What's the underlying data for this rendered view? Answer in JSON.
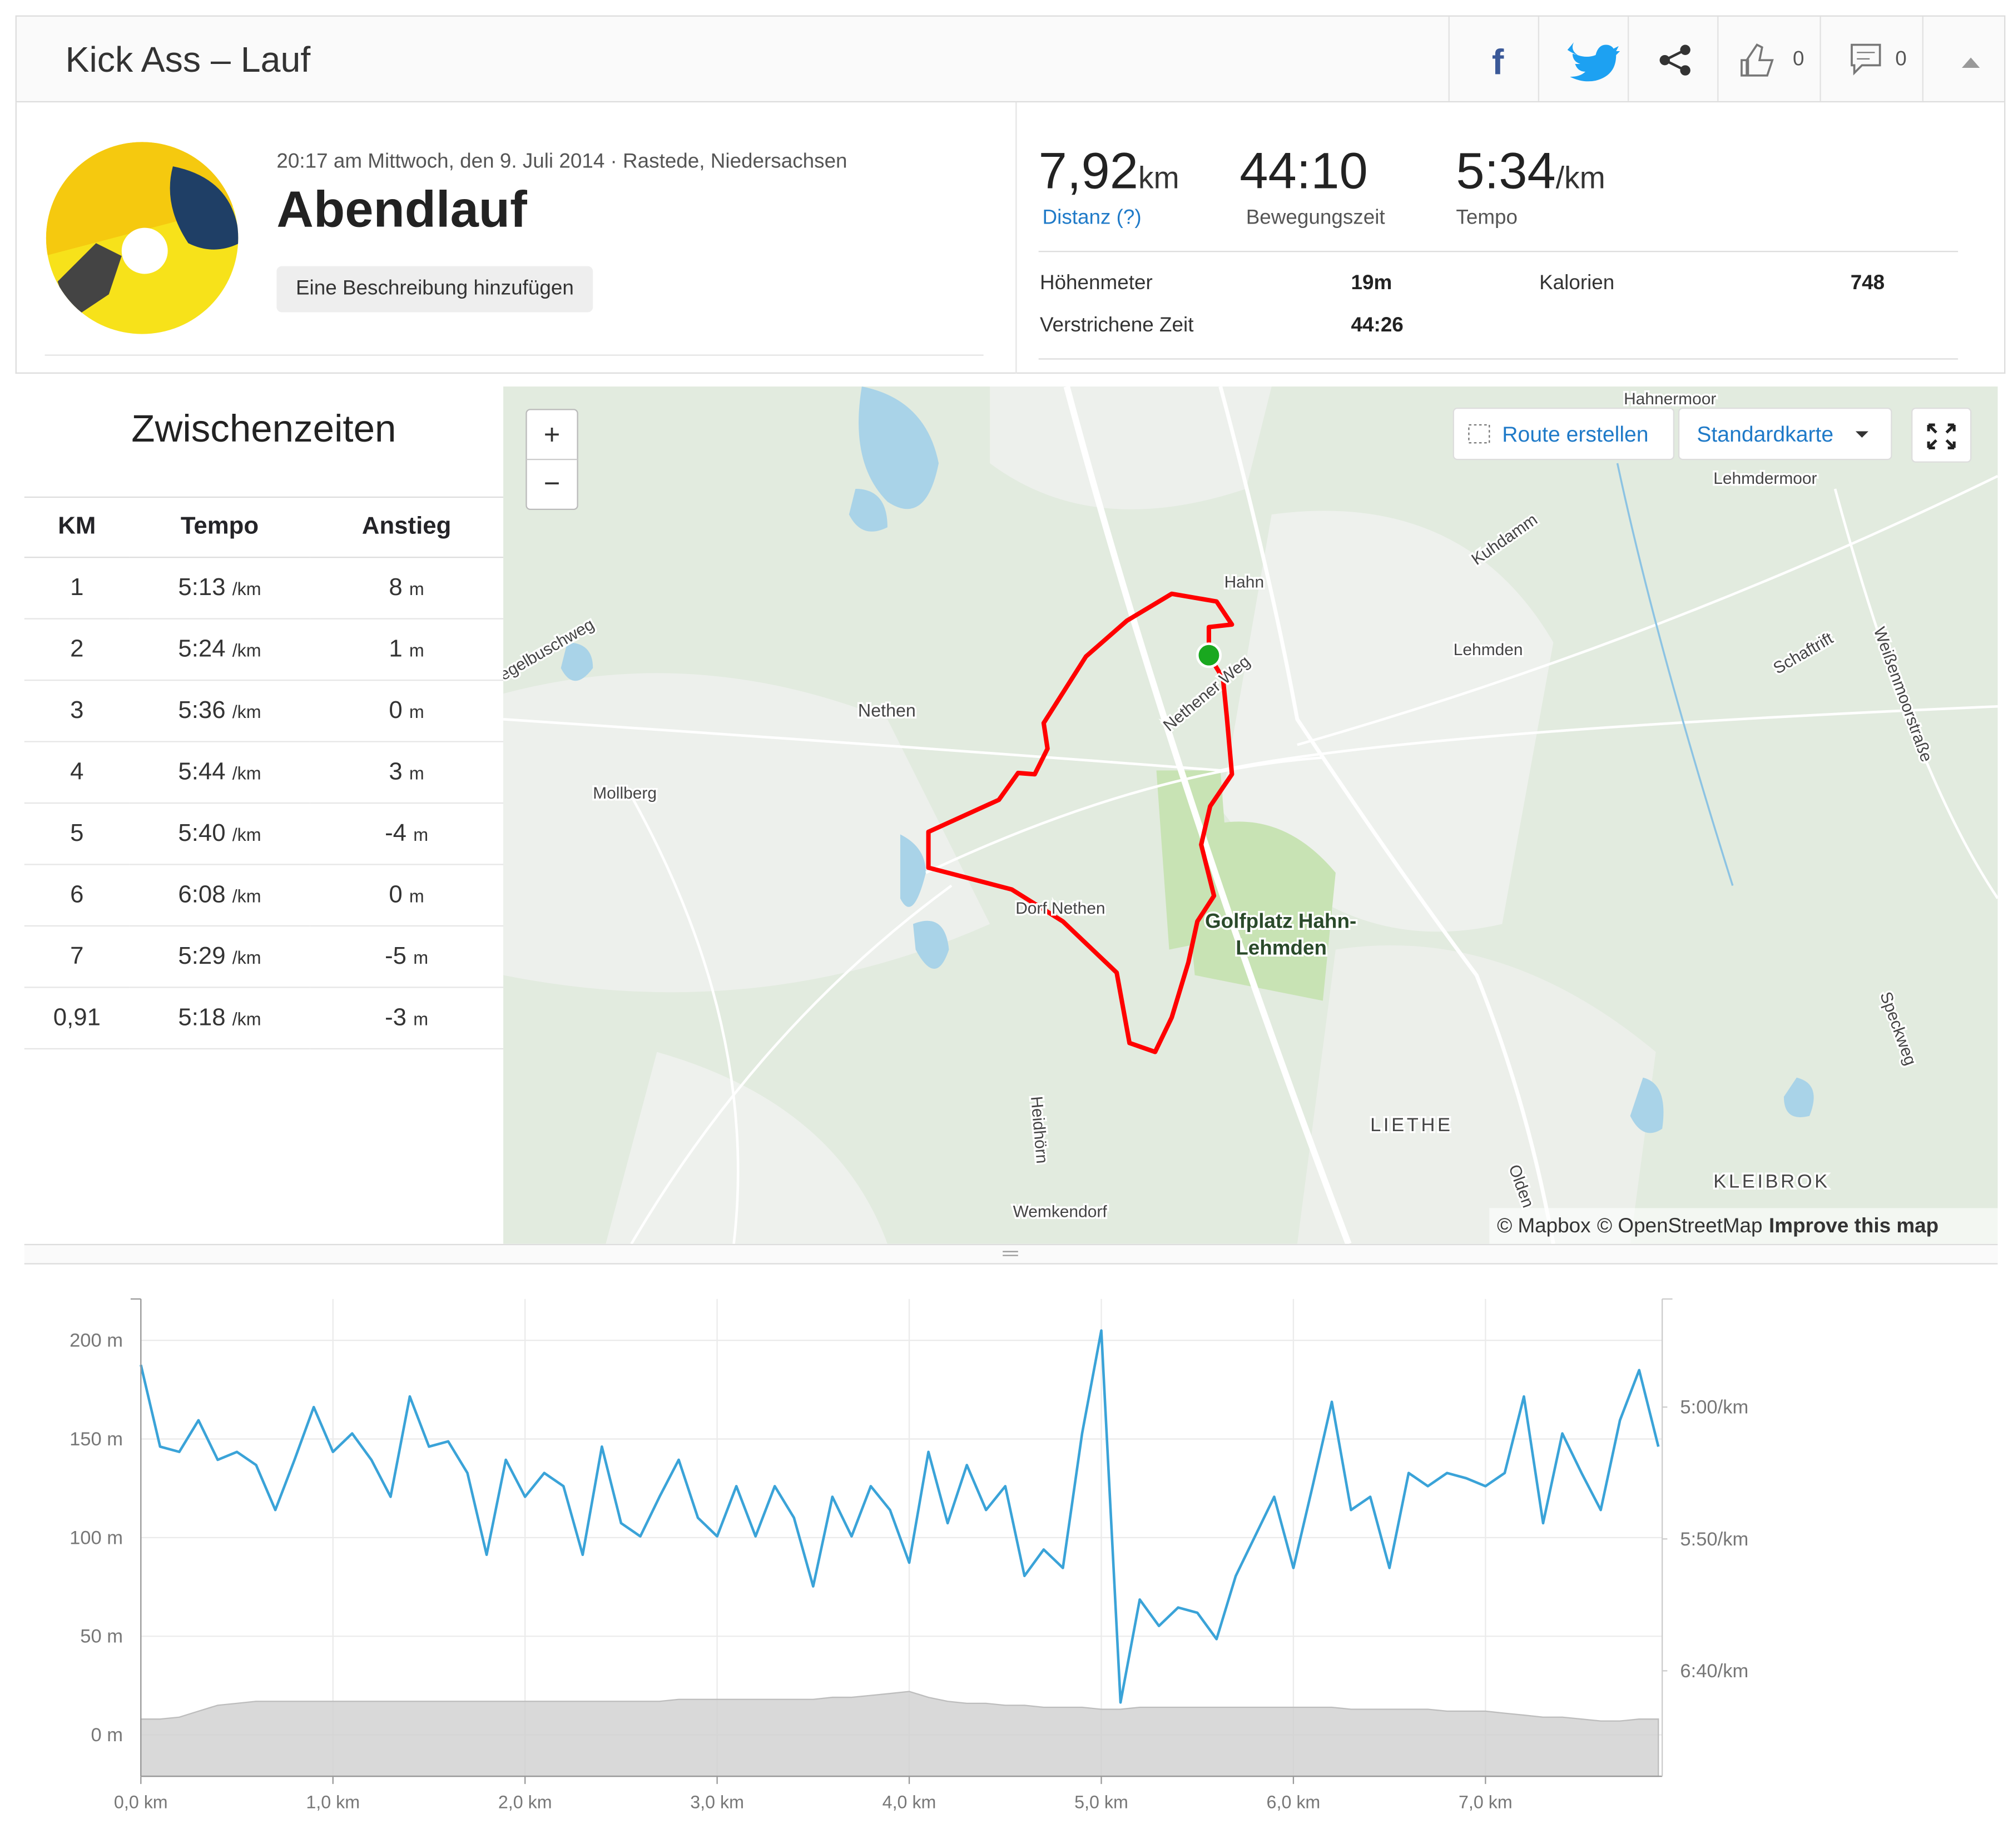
{
  "header": {
    "title": "Kick Ass – Lauf",
    "likes": "0",
    "comments": "0"
  },
  "activity": {
    "meta": "20:17 am Mittwoch, den 9. Juli 2014 · Rastede, Niedersachsen",
    "name": "Abendlauf",
    "add_description": "Eine Beschreibung hinzufügen"
  },
  "stats": {
    "distance": {
      "value": "7,92",
      "unit": "km",
      "label": "Distanz (?)"
    },
    "moving_time": {
      "value": "44:10",
      "label": "Bewegungszeit"
    },
    "pace": {
      "value": "5:34",
      "unit": "/km",
      "label": "Tempo"
    },
    "secondary": [
      {
        "label": "Höhenmeter",
        "value": "19m"
      },
      {
        "label": "Kalorien",
        "value": "748"
      },
      {
        "label": "Verstrichene Zeit",
        "value": "44:26"
      }
    ]
  },
  "splits": {
    "title": "Zwischenzeiten",
    "columns": [
      "KM",
      "Tempo",
      "Anstieg"
    ],
    "rows": [
      {
        "km": "1",
        "pace": "5:13",
        "pace_unit": "/km",
        "elev": "8",
        "elev_unit": "m"
      },
      {
        "km": "2",
        "pace": "5:24",
        "pace_unit": "/km",
        "elev": "1",
        "elev_unit": "m"
      },
      {
        "km": "3",
        "pace": "5:36",
        "pace_unit": "/km",
        "elev": "0",
        "elev_unit": "m"
      },
      {
        "km": "4",
        "pace": "5:44",
        "pace_unit": "/km",
        "elev": "3",
        "elev_unit": "m"
      },
      {
        "km": "5",
        "pace": "5:40",
        "pace_unit": "/km",
        "elev": "-4",
        "elev_unit": "m"
      },
      {
        "km": "6",
        "pace": "6:08",
        "pace_unit": "/km",
        "elev": "0",
        "elev_unit": "m"
      },
      {
        "km": "7",
        "pace": "5:29",
        "pace_unit": "/km",
        "elev": "-5",
        "elev_unit": "m"
      },
      {
        "km": "0,91",
        "pace": "5:18",
        "pace_unit": "/km",
        "elev": "-3",
        "elev_unit": "m"
      }
    ]
  },
  "map": {
    "controls": {
      "zoom_in": "+",
      "zoom_out": "−",
      "route": "Route erstellen",
      "style": "Standardkarte"
    },
    "labels": [
      "Hahnermoor",
      "Lehmdermoor",
      "Kuhdamm",
      "Hahn",
      "Lehmden",
      "Weißenmoorstraße",
      "Schaftrift",
      "Nethener Weg",
      "Nethen",
      "egelbuschweg",
      "Mollberg",
      "Dorf Nethen",
      "Golfplatz Hahn-",
      "Lehmden",
      "Speckweg",
      "LIETHE",
      "Heidhörn",
      "KLEIBROK",
      "Wemkendorf",
      "Olden"
    ],
    "attribution": [
      "© Mapbox",
      "© OpenStreetMap",
      "Improve this map"
    ]
  },
  "chart_data": {
    "type": "line",
    "x": [
      0,
      0.1,
      0.2,
      0.3,
      0.4,
      0.5,
      0.6,
      0.7,
      0.8,
      0.9,
      1,
      1.1,
      1.2,
      1.3,
      1.4,
      1.5,
      1.6,
      1.7,
      1.8,
      1.9,
      2,
      2.1,
      2.2,
      2.3,
      2.4,
      2.5,
      2.6,
      2.7,
      2.8,
      2.9,
      3,
      3.1,
      3.2,
      3.3,
      3.4,
      3.5,
      3.6,
      3.7,
      3.8,
      3.9,
      4,
      4.1,
      4.2,
      4.3,
      4.4,
      4.5,
      4.6,
      4.7,
      4.8,
      4.9,
      5,
      5.1,
      5.2,
      5.3,
      5.4,
      5.5,
      5.6,
      5.7,
      5.8,
      5.9,
      6,
      6.1,
      6.2,
      6.3,
      6.4,
      6.5,
      6.6,
      6.7,
      6.8,
      6.9,
      7,
      7.1,
      7.2,
      7.3,
      7.4,
      7.5,
      7.6,
      7.7,
      7.8,
      7.9
    ],
    "series": [
      {
        "color": "#cfcfcf",
        "fill": true,
        "values": [
          8,
          8,
          9,
          12,
          15,
          16,
          17,
          17,
          17,
          17,
          17,
          17,
          17,
          17,
          17,
          17,
          17,
          17,
          17,
          17,
          17,
          17,
          17,
          17,
          17,
          17,
          17,
          17,
          18,
          18,
          18,
          18,
          18,
          18,
          18,
          18,
          19,
          19,
          20,
          21,
          22,
          19,
          17,
          16,
          16,
          15,
          15,
          14,
          14,
          14,
          13,
          13,
          14,
          14,
          14,
          14,
          14,
          14,
          14,
          14,
          14,
          14,
          14,
          13,
          13,
          13,
          13,
          13,
          12,
          12,
          12,
          11,
          10,
          9,
          9,
          8,
          7,
          7,
          8,
          8
        ]
      },
      {
        "color": "#3aa3d8",
        "axis": "y2",
        "values": [
          284,
          315,
          317,
          305,
          320,
          317,
          322,
          339,
          320,
          300,
          317,
          310,
          320,
          334,
          296,
          315,
          313,
          325,
          356,
          320,
          334,
          325,
          330,
          356,
          315,
          344,
          349,
          334,
          320,
          342,
          349,
          330,
          349,
          330,
          342,
          368,
          334,
          349,
          330,
          339,
          359,
          317,
          344,
          322,
          339,
          330,
          364,
          354,
          361,
          310,
          271,
          412,
          373,
          383,
          376,
          378,
          388,
          364,
          349,
          334,
          361,
          330,
          298,
          339,
          334,
          361,
          325,
          330,
          325,
          327,
          330,
          325,
          296,
          344,
          310,
          325,
          339,
          305,
          286,
          315
        ]
      }
    ],
    "xlim": [
      0,
      7.92
    ],
    "xticks": [
      {
        "value": 0,
        "label": "0,0 km"
      },
      {
        "value": 1,
        "label": "1,0 km"
      },
      {
        "value": 2,
        "label": "2,0 km"
      },
      {
        "value": 3,
        "label": "3,0 km"
      },
      {
        "value": 4,
        "label": "4,0 km"
      },
      {
        "value": 5,
        "label": "5,0 km"
      },
      {
        "value": 6,
        "label": "6,0 km"
      },
      {
        "value": 7,
        "label": "7,0 km"
      }
    ],
    "ylim": [
      -21,
      221
    ],
    "yticks": [
      {
        "value": 0,
        "label": "0 m"
      },
      {
        "value": 50,
        "label": "50 m"
      },
      {
        "value": 100,
        "label": "100 m"
      },
      {
        "value": 150,
        "label": "150 m"
      },
      {
        "value": 200,
        "label": "200 m"
      }
    ],
    "y2lim": [
      440,
      259
    ],
    "y2ticks": [
      {
        "value": 300,
        "label": "5:00/km"
      },
      {
        "value": 350,
        "label": "5:50/km"
      },
      {
        "value": 400,
        "label": "6:40/km"
      }
    ],
    "grid": true
  }
}
